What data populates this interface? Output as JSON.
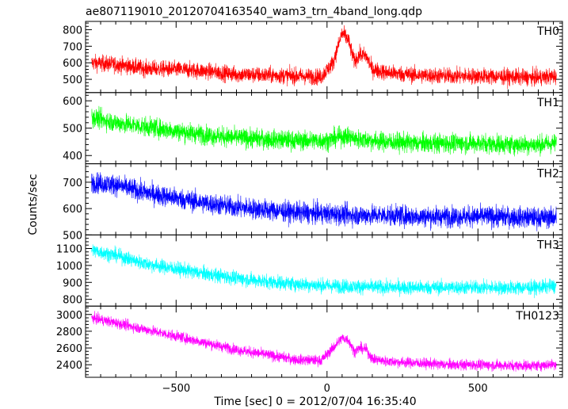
{
  "chart_data": {
    "type": "line",
    "title": "ae807119010_20120704163540_wam3_trn_4band_long.qdp",
    "xlabel": "Time [sec] 0 = 2012/07/04 16:35:40",
    "ylabel": "Counts/sec",
    "xlim": [
      -800,
      780
    ],
    "xticks": [
      {
        "value": -500,
        "label": "−500"
      },
      {
        "value": 0,
        "label": "0"
      },
      {
        "value": 500,
        "label": "500"
      }
    ],
    "panels": [
      {
        "name": "TH0",
        "color": "#ff0000",
        "ylim": [
          420,
          850
        ],
        "yticks": [
          500,
          600,
          700,
          800
        ],
        "x": [
          -780,
          -700,
          -600,
          -500,
          -400,
          -300,
          -200,
          -100,
          -20,
          20,
          50,
          70,
          90,
          110,
          130,
          150,
          200,
          300,
          400,
          500,
          600,
          700,
          760
        ],
        "values": [
          600,
          590,
          565,
          560,
          550,
          530,
          525,
          520,
          515,
          600,
          780,
          740,
          610,
          650,
          640,
          560,
          540,
          525,
          520,
          520,
          515,
          510,
          520
        ],
        "noise": 35
      },
      {
        "name": "TH1",
        "color": "#00ff00",
        "ylim": [
          370,
          630
        ],
        "yticks": [
          400,
          500,
          600
        ],
        "x": [
          -780,
          -700,
          -600,
          -500,
          -400,
          -300,
          -200,
          -100,
          0,
          50,
          70,
          100,
          200,
          300,
          400,
          500,
          600,
          700,
          760
        ],
        "values": [
          540,
          520,
          505,
          490,
          475,
          465,
          460,
          455,
          455,
          470,
          470,
          460,
          450,
          445,
          445,
          445,
          440,
          440,
          445
        ],
        "noise": 25
      },
      {
        "name": "TH2",
        "color": "#0000ff",
        "ylim": [
          500,
          770
        ],
        "yticks": [
          500,
          600,
          700
        ],
        "x": [
          -780,
          -700,
          -600,
          -500,
          -400,
          -300,
          -200,
          -100,
          0,
          100,
          200,
          300,
          400,
          500,
          600,
          700,
          760
        ],
        "values": [
          700,
          690,
          660,
          640,
          620,
          605,
          595,
          585,
          580,
          575,
          575,
          570,
          570,
          570,
          568,
          565,
          568
        ],
        "noise": 28
      },
      {
        "name": "TH3",
        "color": "#00ffff",
        "ylim": [
          760,
          1180
        ],
        "yticks": [
          800,
          900,
          1000,
          1100
        ],
        "x": [
          -780,
          -700,
          -600,
          -500,
          -400,
          -300,
          -200,
          -100,
          0,
          100,
          200,
          300,
          400,
          500,
          600,
          700,
          760
        ],
        "values": [
          1090,
          1060,
          1010,
          980,
          950,
          925,
          905,
          890,
          880,
          875,
          870,
          870,
          870,
          870,
          868,
          870,
          880
        ],
        "noise": 30
      },
      {
        "name": "TH0123",
        "color": "#ff00ff",
        "ylim": [
          2250,
          3100
        ],
        "yticks": [
          2400,
          2600,
          2800,
          3000
        ],
        "x": [
          -780,
          -700,
          -600,
          -500,
          -400,
          -300,
          -200,
          -100,
          -20,
          20,
          50,
          70,
          90,
          110,
          130,
          150,
          200,
          300,
          400,
          500,
          600,
          700,
          760
        ],
        "values": [
          2960,
          2900,
          2820,
          2740,
          2660,
          2580,
          2520,
          2460,
          2450,
          2600,
          2720,
          2700,
          2560,
          2600,
          2580,
          2470,
          2440,
          2420,
          2400,
          2400,
          2390,
          2390,
          2410
        ],
        "noise": 45
      }
    ]
  }
}
